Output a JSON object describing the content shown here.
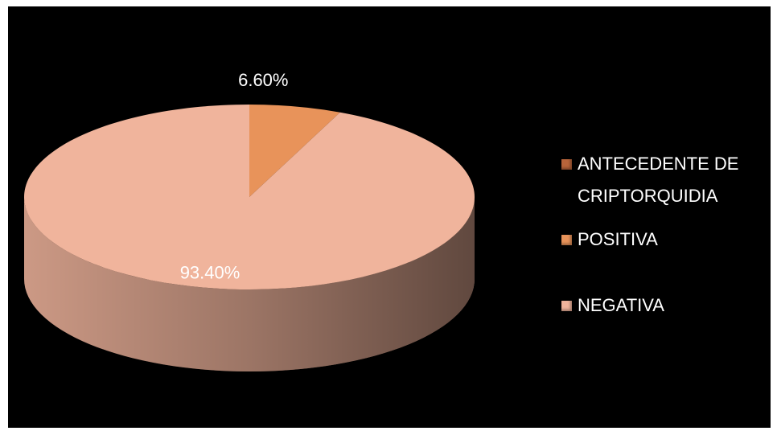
{
  "chart_data": {
    "type": "pie",
    "legend_title": "ANTECEDENTE DE CRIPTORQUIDIA",
    "categories": [
      "POSITIVA",
      "NEGATIVA"
    ],
    "values": [
      6.6,
      93.4
    ],
    "value_labels": [
      "6.60%",
      "93.40%"
    ],
    "colors": [
      "#e8935a",
      "#f0b49c"
    ],
    "legend": "right"
  }
}
